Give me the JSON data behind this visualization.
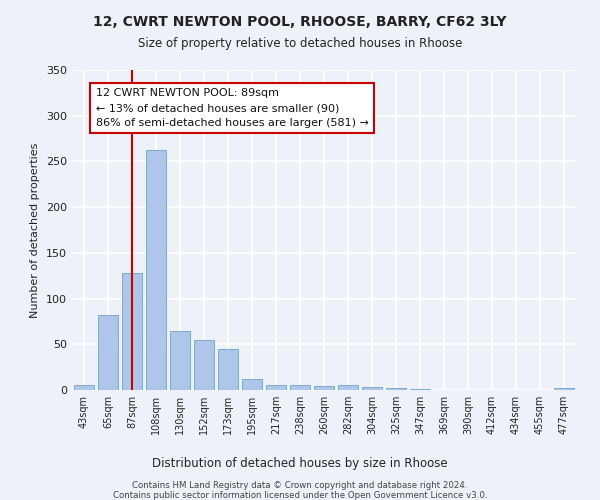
{
  "title1": "12, CWRT NEWTON POOL, RHOOSE, BARRY, CF62 3LY",
  "title2": "Size of property relative to detached houses in Rhoose",
  "xlabel": "Distribution of detached houses by size in Rhoose",
  "ylabel": "Number of detached properties",
  "categories": [
    "43sqm",
    "65sqm",
    "87sqm",
    "108sqm",
    "130sqm",
    "152sqm",
    "173sqm",
    "195sqm",
    "217sqm",
    "238sqm",
    "260sqm",
    "282sqm",
    "304sqm",
    "325sqm",
    "347sqm",
    "369sqm",
    "390sqm",
    "412sqm",
    "434sqm",
    "455sqm",
    "477sqm"
  ],
  "values": [
    5,
    82,
    128,
    262,
    65,
    55,
    45,
    12,
    6,
    5,
    4,
    5,
    3,
    2,
    1,
    0,
    0,
    0,
    0,
    0,
    2
  ],
  "bar_color": "#aec6e8",
  "bar_edge_color": "#7aabcf",
  "vline_x_index": 2,
  "vline_color": "#cc0000",
  "annotation_text": "12 CWRT NEWTON POOL: 89sqm\n← 13% of detached houses are smaller (90)\n86% of semi-detached houses are larger (581) →",
  "annotation_box_color": "#ffffff",
  "annotation_box_edge": "#cc0000",
  "ylim": [
    0,
    350
  ],
  "yticks": [
    0,
    50,
    100,
    150,
    200,
    250,
    300,
    350
  ],
  "footer1": "Contains HM Land Registry data © Crown copyright and database right 2024.",
  "footer2": "Contains public sector information licensed under the Open Government Licence v3.0.",
  "background_color": "#eef2f8",
  "grid_color": "#ffffff"
}
